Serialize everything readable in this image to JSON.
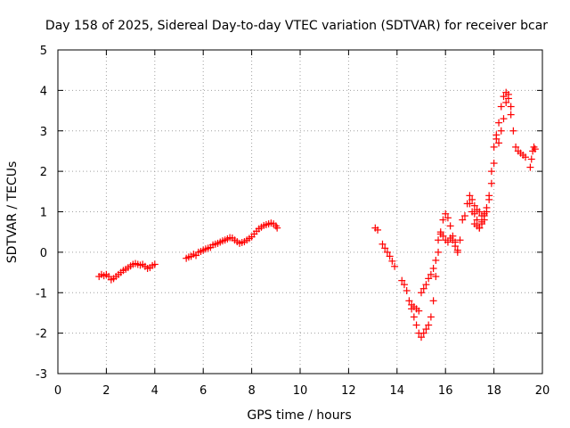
{
  "chart_data": {
    "type": "scatter",
    "title": "Day 158 of 2025, Sidereal Day-to-day VTEC variation (SDTVAR) for receiver bcar",
    "xlabel": "GPS time / hours",
    "ylabel": "SDTVAR / TECUs",
    "xlim": [
      0,
      20
    ],
    "ylim": [
      -3,
      5
    ],
    "xticks": [
      "0",
      "2",
      "4",
      "6",
      "8",
      "10",
      "12",
      "14",
      "16",
      "18",
      "20"
    ],
    "yticks": [
      "-3",
      "-2",
      "-1",
      "0",
      "1",
      "2",
      "3",
      "4",
      "5"
    ],
    "grid": true,
    "marker": "plus",
    "color": "#ff0000",
    "series": [
      {
        "name": "SDTVAR",
        "points": [
          [
            1.7,
            -0.6
          ],
          [
            1.8,
            -0.55
          ],
          [
            1.9,
            -0.58
          ],
          [
            2.0,
            -0.55
          ],
          [
            2.1,
            -0.6
          ],
          [
            2.2,
            -0.68
          ],
          [
            2.3,
            -0.65
          ],
          [
            2.4,
            -0.6
          ],
          [
            2.5,
            -0.55
          ],
          [
            2.6,
            -0.5
          ],
          [
            2.7,
            -0.45
          ],
          [
            2.8,
            -0.42
          ],
          [
            2.9,
            -0.38
          ],
          [
            3.0,
            -0.34
          ],
          [
            3.1,
            -0.3
          ],
          [
            3.2,
            -0.28
          ],
          [
            3.3,
            -0.3
          ],
          [
            3.4,
            -0.32
          ],
          [
            3.5,
            -0.3
          ],
          [
            3.6,
            -0.35
          ],
          [
            3.7,
            -0.4
          ],
          [
            3.8,
            -0.38
          ],
          [
            3.9,
            -0.33
          ],
          [
            4.0,
            -0.3
          ],
          [
            5.3,
            -0.15
          ],
          [
            5.4,
            -0.12
          ],
          [
            5.5,
            -0.1
          ],
          [
            5.6,
            -0.05
          ],
          [
            5.7,
            -0.08
          ],
          [
            5.8,
            0.0
          ],
          [
            5.9,
            0.02
          ],
          [
            6.0,
            0.05
          ],
          [
            6.1,
            0.08
          ],
          [
            6.2,
            0.1
          ],
          [
            6.3,
            0.12
          ],
          [
            6.4,
            0.18
          ],
          [
            6.5,
            0.2
          ],
          [
            6.6,
            0.22
          ],
          [
            6.7,
            0.25
          ],
          [
            6.8,
            0.28
          ],
          [
            6.9,
            0.3
          ],
          [
            7.0,
            0.33
          ],
          [
            7.1,
            0.36
          ],
          [
            7.2,
            0.35
          ],
          [
            7.3,
            0.3
          ],
          [
            7.4,
            0.26
          ],
          [
            7.5,
            0.22
          ],
          [
            7.6,
            0.24
          ],
          [
            7.7,
            0.26
          ],
          [
            7.8,
            0.3
          ],
          [
            7.9,
            0.34
          ],
          [
            8.0,
            0.38
          ],
          [
            8.1,
            0.45
          ],
          [
            8.2,
            0.52
          ],
          [
            8.3,
            0.58
          ],
          [
            8.4,
            0.62
          ],
          [
            8.5,
            0.66
          ],
          [
            8.6,
            0.68
          ],
          [
            8.7,
            0.7
          ],
          [
            8.8,
            0.72
          ],
          [
            8.9,
            0.7
          ],
          [
            9.0,
            0.65
          ],
          [
            9.05,
            0.6
          ],
          [
            13.1,
            0.6
          ],
          [
            13.2,
            0.55
          ],
          [
            13.4,
            0.2
          ],
          [
            13.5,
            0.1
          ],
          [
            13.6,
            0.0
          ],
          [
            13.7,
            -0.1
          ],
          [
            13.8,
            -0.22
          ],
          [
            13.9,
            -0.35
          ],
          [
            14.2,
            -0.7
          ],
          [
            14.3,
            -0.8
          ],
          [
            14.4,
            -0.95
          ],
          [
            14.5,
            -1.2
          ],
          [
            14.6,
            -1.4
          ],
          [
            14.7,
            -1.6
          ],
          [
            14.8,
            -1.8
          ],
          [
            14.9,
            -2.0
          ],
          [
            15.0,
            -2.1
          ],
          [
            15.1,
            -2.0
          ],
          [
            15.2,
            -1.9
          ],
          [
            15.3,
            -1.8
          ],
          [
            15.4,
            -1.6
          ],
          [
            15.5,
            -1.2
          ],
          [
            15.6,
            -0.6
          ],
          [
            15.7,
            0.0
          ],
          [
            15.8,
            0.5
          ],
          [
            15.9,
            0.8
          ],
          [
            16.0,
            0.95
          ],
          [
            16.1,
            0.85
          ],
          [
            16.2,
            0.65
          ],
          [
            16.3,
            0.4
          ],
          [
            16.4,
            0.15
          ],
          [
            16.5,
            0.0
          ],
          [
            14.6,
            -1.3
          ],
          [
            14.7,
            -1.35
          ],
          [
            14.8,
            -1.4
          ],
          [
            14.9,
            -1.45
          ],
          [
            15.0,
            -1.0
          ],
          [
            15.1,
            -0.9
          ],
          [
            15.2,
            -0.8
          ],
          [
            15.3,
            -0.65
          ],
          [
            15.4,
            -0.55
          ],
          [
            15.5,
            -0.4
          ],
          [
            15.6,
            -0.2
          ],
          [
            15.7,
            0.3
          ],
          [
            15.8,
            0.45
          ],
          [
            15.9,
            0.4
          ],
          [
            16.0,
            0.3
          ],
          [
            16.1,
            0.25
          ],
          [
            16.2,
            0.35
          ],
          [
            16.3,
            0.3
          ],
          [
            16.4,
            0.25
          ],
          [
            16.5,
            0.05
          ],
          [
            16.6,
            0.3
          ],
          [
            16.7,
            0.8
          ],
          [
            16.8,
            0.9
          ],
          [
            16.9,
            1.2
          ],
          [
            17.0,
            1.4
          ],
          [
            17.1,
            1.3
          ],
          [
            17.2,
            1.15
          ],
          [
            17.3,
            0.8
          ],
          [
            17.4,
            0.6
          ],
          [
            17.5,
            0.7
          ],
          [
            17.6,
            0.9
          ],
          [
            17.7,
            1.1
          ],
          [
            17.8,
            1.4
          ],
          [
            17.9,
            1.7
          ],
          [
            18.0,
            2.2
          ],
          [
            18.1,
            2.8
          ],
          [
            18.2,
            3.2
          ],
          [
            18.3,
            3.6
          ],
          [
            18.4,
            3.85
          ],
          [
            18.5,
            3.95
          ],
          [
            18.6,
            3.8
          ],
          [
            18.7,
            3.4
          ],
          [
            18.8,
            3.0
          ],
          [
            18.9,
            2.6
          ],
          [
            19.0,
            2.5
          ],
          [
            19.1,
            2.45
          ],
          [
            19.2,
            2.4
          ],
          [
            19.3,
            2.35
          ],
          [
            17.0,
            1.2
          ],
          [
            17.1,
            1.0
          ],
          [
            17.2,
            0.95
          ],
          [
            17.3,
            1.05
          ],
          [
            17.4,
            1.0
          ],
          [
            17.5,
            0.9
          ],
          [
            17.6,
            0.95
          ],
          [
            17.7,
            1.0
          ],
          [
            17.8,
            1.3
          ],
          [
            17.9,
            2.0
          ],
          [
            18.0,
            2.6
          ],
          [
            18.1,
            2.9
          ],
          [
            18.2,
            2.7
          ],
          [
            18.3,
            3.0
          ],
          [
            18.4,
            3.3
          ],
          [
            18.5,
            3.7
          ],
          [
            18.6,
            3.9
          ],
          [
            18.7,
            3.6
          ],
          [
            17.2,
            0.7
          ],
          [
            17.3,
            0.65
          ],
          [
            17.4,
            0.6
          ],
          [
            17.5,
            0.75
          ],
          [
            17.6,
            0.8
          ],
          [
            19.5,
            2.1
          ],
          [
            19.55,
            2.3
          ],
          [
            19.6,
            2.5
          ],
          [
            19.65,
            2.6
          ],
          [
            19.7,
            2.55
          ]
        ]
      }
    ]
  }
}
